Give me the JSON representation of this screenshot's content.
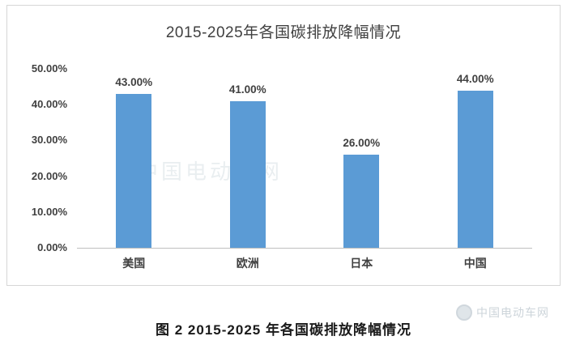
{
  "chart_data": {
    "type": "bar",
    "title": "2015-2025年各国碳排放降幅情况",
    "categories": [
      "美国",
      "欧洲",
      "日本",
      "中国"
    ],
    "values": [
      43,
      41,
      26,
      44
    ],
    "value_labels": [
      "43.00%",
      "41.00%",
      "26.00%",
      "44.00%"
    ],
    "xlabel": "",
    "ylabel": "",
    "ylim": [
      0,
      50
    ],
    "y_ticks": [
      0,
      10,
      20,
      30,
      40,
      50
    ],
    "y_tick_labels": [
      "0.00%",
      "10.00%",
      "20.00%",
      "30.00%",
      "40.00%",
      "50.00%"
    ],
    "grid": false,
    "legend": "none",
    "bar_color": "#5b9bd5"
  },
  "caption": "图 2  2015-2025 年各国碳排放降幅情况",
  "watermark": {
    "center_text": "中国电动车网",
    "bottom_right_text": "中国电动车网"
  }
}
